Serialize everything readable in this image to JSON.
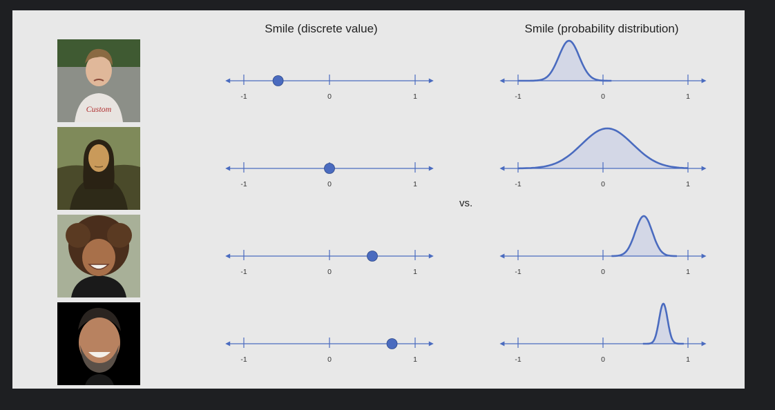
{
  "titles": {
    "discrete": "Smile (discrete value)",
    "distribution": "Smile (probability distribution)",
    "vs": "vs."
  },
  "photos": [
    {
      "subject": "boy-frowning",
      "smile": "frown"
    },
    {
      "subject": "mona-lisa-painting",
      "smile": "neutral"
    },
    {
      "subject": "girl-smiling",
      "smile": "smile"
    },
    {
      "subject": "man-laughing",
      "smile": "big-smile"
    }
  ],
  "colors": {
    "axis": "#4a6bbf",
    "marker": "#4a6bbf",
    "curve": "#4a6bbf",
    "fill": "#d3d7e6",
    "background": "#e8e8e8"
  },
  "chart_data": [
    {
      "type": "scatter",
      "name": "discrete",
      "xlim": [
        -1.2,
        1.2
      ],
      "ticks": [
        "-1",
        "0",
        "1"
      ],
      "points": [
        -0.6,
        0.0,
        0.5,
        0.73
      ]
    },
    {
      "type": "area",
      "name": "distribution",
      "xlim": [
        -1.2,
        1.2
      ],
      "ticks": [
        "-1",
        "0",
        "1"
      ],
      "curves": [
        {
          "mean": -0.4,
          "sd": 0.12,
          "from": -1.0,
          "to": 0.1
        },
        {
          "mean": 0.05,
          "sd": 0.3,
          "from": -1.0,
          "to": 1.0
        },
        {
          "mean": 0.48,
          "sd": 0.1,
          "from": 0.1,
          "to": 0.87
        },
        {
          "mean": 0.71,
          "sd": 0.05,
          "from": 0.47,
          "to": 0.95
        }
      ]
    }
  ]
}
